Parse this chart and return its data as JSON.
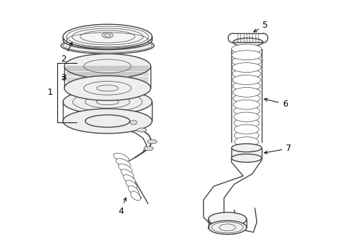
{
  "bg_color": "#ffffff",
  "line_color": "#404040",
  "label_color": "#000000",
  "figsize": [
    4.89,
    3.6
  ],
  "dpi": 100,
  "lw_main": 1.0,
  "lw_thin": 0.5,
  "lw_thick": 1.3
}
